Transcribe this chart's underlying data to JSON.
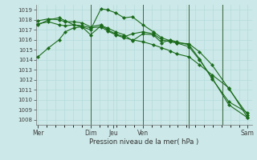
{
  "background_color": "#cce8e8",
  "grid_color": "#b0d8d8",
  "line_color": "#1a6b1a",
  "xlabel": "Pression niveau de la mer( hPa )",
  "ylim": [
    1007.5,
    1019.5
  ],
  "yticks": [
    1008,
    1009,
    1010,
    1011,
    1012,
    1013,
    1014,
    1015,
    1016,
    1017,
    1018,
    1019
  ],
  "vline_positions": [
    0.25,
    0.5,
    0.72,
    0.88
  ],
  "xtick_positions": [
    0.0,
    0.25,
    0.36,
    0.5,
    0.72,
    1.0
  ],
  "xtick_labels": [
    "Mer",
    "Dim",
    "Jeu",
    "Ven",
    "",
    "Sam"
  ],
  "series": [
    {
      "x": [
        0.0,
        0.05,
        0.1,
        0.13,
        0.17,
        0.21,
        0.25,
        0.3,
        0.33,
        0.37,
        0.41,
        0.45,
        0.5,
        0.55,
        0.59,
        0.63,
        0.66,
        0.72,
        0.77,
        0.83,
        0.91,
        1.0
      ],
      "y": [
        1014.3,
        1015.2,
        1016.0,
        1016.8,
        1017.2,
        1017.3,
        1017.0,
        1019.1,
        1019.0,
        1018.7,
        1018.2,
        1018.3,
        1017.5,
        1016.8,
        1016.2,
        1015.9,
        1015.7,
        1015.3,
        1014.0,
        1012.2,
        1009.5,
        1008.2
      ],
      "ms": 2.5
    },
    {
      "x": [
        0.0,
        0.05,
        0.1,
        0.13,
        0.17,
        0.21,
        0.25,
        0.3,
        0.33,
        0.37,
        0.41,
        0.45,
        0.5,
        0.55,
        0.59,
        0.63,
        0.66,
        0.72,
        0.77,
        0.83,
        0.91,
        1.0
      ],
      "y": [
        1017.6,
        1017.8,
        1017.5,
        1017.4,
        1017.5,
        1017.4,
        1017.2,
        1017.3,
        1016.9,
        1016.5,
        1016.2,
        1016.0,
        1015.8,
        1015.5,
        1015.2,
        1014.9,
        1014.6,
        1014.3,
        1013.5,
        1012.5,
        1011.2,
        1008.2
      ],
      "ms": 2.5
    },
    {
      "x": [
        0.0,
        0.05,
        0.1,
        0.13,
        0.17,
        0.21,
        0.25,
        0.3,
        0.33,
        0.37,
        0.41,
        0.45,
        0.5,
        0.55,
        0.59,
        0.63,
        0.66,
        0.72,
        0.77,
        0.83,
        0.91,
        1.0
      ],
      "y": [
        1017.9,
        1018.1,
        1018.0,
        1017.8,
        1017.8,
        1017.7,
        1017.3,
        1017.5,
        1017.0,
        1016.6,
        1016.3,
        1016.6,
        1016.8,
        1016.6,
        1016.0,
        1015.8,
        1015.7,
        1015.6,
        1014.8,
        1013.5,
        1011.1,
        1008.5
      ],
      "ms": 2.5
    },
    {
      "x": [
        0.0,
        0.05,
        0.1,
        0.13,
        0.17,
        0.21,
        0.25,
        0.3,
        0.33,
        0.37,
        0.41,
        0.45,
        0.5,
        0.55,
        0.59,
        0.63,
        0.66,
        0.72,
        0.77,
        0.83,
        0.91,
        1.0
      ],
      "y": [
        1017.5,
        1018.0,
        1018.2,
        1017.9,
        1017.5,
        1017.3,
        1016.5,
        1017.4,
        1017.2,
        1016.8,
        1016.5,
        1015.9,
        1016.6,
        1016.5,
        1015.7,
        1016.0,
        1015.8,
        1015.5,
        1014.1,
        1012.1,
        1009.8,
        1008.7
      ],
      "ms": 2.5
    }
  ]
}
